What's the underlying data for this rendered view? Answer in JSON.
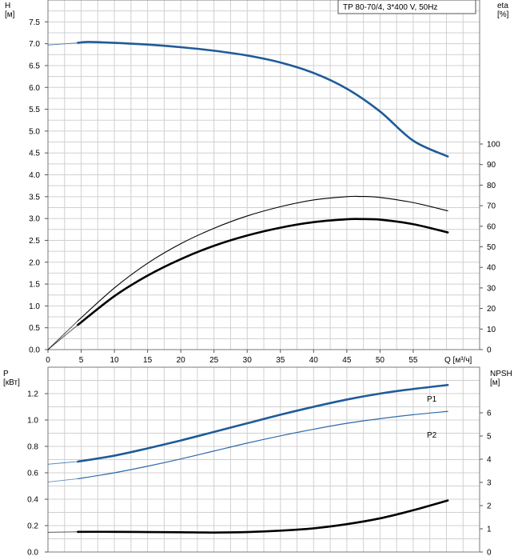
{
  "legend_box": "TP 80-70/4, 3*400 V, 50Hz",
  "colors": {
    "blue": "#1f5b99",
    "blue_thin": "#2f6aa8",
    "black": "#000000",
    "grid": "#d0d0d0"
  },
  "chart_data": [
    {
      "type": "line",
      "title": "",
      "xlabel": "Q [м³/ч]",
      "ylabel": "H\n[м]",
      "y2label": "eta\n[%]",
      "xlim": [
        0,
        65
      ],
      "xticks": [
        0,
        5,
        10,
        15,
        20,
        25,
        30,
        35,
        40,
        45,
        50,
        55
      ],
      "ylim": [
        0,
        8
      ],
      "yticks": [
        "0.0",
        "0.5",
        "1.0",
        "1.5",
        "2.0",
        "2.5",
        "3.0",
        "3.5",
        "4.0",
        "4.5",
        "5.0",
        "5.5",
        "6.0",
        "6.5",
        "7.0",
        "7.5"
      ],
      "y2lim": [
        0,
        100
      ],
      "y2ticks": [
        0,
        10,
        20,
        30,
        40,
        50,
        60,
        70,
        80,
        90,
        100
      ],
      "grid": true,
      "series": [
        {
          "id": "H",
          "axis": "left",
          "x": [
            0,
            4.5,
            6,
            10,
            15,
            20,
            25,
            30,
            35,
            40,
            45,
            50,
            55,
            60.2
          ],
          "values": [
            6.97,
            7.02,
            7.04,
            7.02,
            6.98,
            6.92,
            6.84,
            6.73,
            6.57,
            6.33,
            5.97,
            5.45,
            4.78,
            4.42
          ]
        },
        {
          "id": "eta_thin",
          "axis": "right",
          "x": [
            0,
            4.5,
            10,
            15,
            20,
            25,
            30,
            35,
            40,
            45,
            47,
            50,
            55,
            60.2
          ],
          "values": [
            0,
            14,
            30,
            42,
            51.5,
            59,
            65,
            69.5,
            72.8,
            74.4,
            74.5,
            74,
            71.5,
            67.5
          ]
        },
        {
          "id": "eta_thick",
          "axis": "right",
          "x": [
            0,
            4.5,
            10,
            15,
            20,
            25,
            30,
            35,
            40,
            45,
            47,
            50,
            55,
            60.2
          ],
          "values": [
            0,
            12,
            26,
            36,
            44,
            50.5,
            55.5,
            59.3,
            62,
            63.4,
            63.5,
            63.2,
            61,
            57
          ]
        }
      ]
    },
    {
      "type": "line",
      "title": "",
      "xlabel": "",
      "ylabel": "P\n[кВт]",
      "y2label": "NPSH\n[м]",
      "xlim": [
        0,
        65
      ],
      "ylim": [
        0,
        1.4
      ],
      "yticks": [
        "0.0",
        "0.2",
        "0.4",
        "0.6",
        "0.8",
        "1.0",
        "1.2"
      ],
      "y2lim": [
        0,
        7
      ],
      "y2ticks": [
        0,
        1,
        2,
        3,
        4,
        5,
        6
      ],
      "grid": true,
      "series": [
        {
          "id": "P1",
          "name": "P1",
          "axis": "left",
          "x": [
            0,
            4.5,
            10,
            15,
            20,
            25,
            30,
            35,
            40,
            45,
            50,
            55,
            60.2
          ],
          "values": [
            0.665,
            0.685,
            0.73,
            0.785,
            0.845,
            0.91,
            0.975,
            1.04,
            1.1,
            1.155,
            1.2,
            1.235,
            1.265
          ]
        },
        {
          "id": "P2",
          "name": "P2",
          "axis": "left",
          "x": [
            0,
            4.5,
            10,
            15,
            20,
            25,
            30,
            35,
            40,
            45,
            50,
            55,
            60.2
          ],
          "values": [
            0.53,
            0.555,
            0.6,
            0.65,
            0.705,
            0.765,
            0.825,
            0.88,
            0.93,
            0.975,
            1.01,
            1.04,
            1.065
          ]
        },
        {
          "id": "NPSH",
          "axis": "right",
          "x": [
            0,
            4.5,
            10,
            15,
            20,
            25,
            30,
            35,
            40,
            45,
            50,
            55,
            60.2
          ],
          "values": [
            0.85,
            0.87,
            0.87,
            0.86,
            0.85,
            0.84,
            0.86,
            0.92,
            1.02,
            1.2,
            1.45,
            1.8,
            2.22
          ]
        }
      ]
    }
  ]
}
